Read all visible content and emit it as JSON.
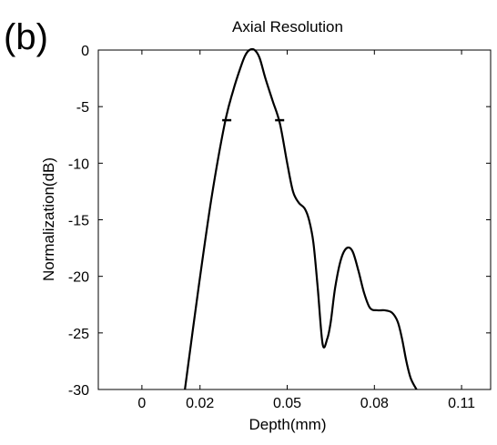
{
  "panel_label": "(b)",
  "chart_data": {
    "type": "line",
    "title": "Axial Resolution",
    "xlabel": "Depth(mm)",
    "ylabel": "Normalization(dB)",
    "xlim": [
      -0.015,
      0.12
    ],
    "ylim": [
      -30,
      0
    ],
    "xticks": [
      0,
      0.02,
      0.05,
      0.08,
      0.11
    ],
    "xtick_labels": [
      "0",
      "0.02",
      "0.05",
      "0.08",
      "0.11"
    ],
    "yticks": [
      0,
      -5,
      -10,
      -15,
      -20,
      -25,
      -30
    ],
    "ytick_labels": [
      "0",
      "-5",
      "-10",
      "-15",
      "-20",
      "-25",
      "-30"
    ],
    "grid": false,
    "legend": "none",
    "line_color": "#000000",
    "series": [
      {
        "x": [
          0.0148,
          0.0195,
          0.024,
          0.0285,
          0.0315,
          0.034,
          0.0355,
          0.037,
          0.0388,
          0.0405,
          0.0425,
          0.045,
          0.0475,
          0.05,
          0.052,
          0.054,
          0.056,
          0.0575,
          0.059,
          0.0605,
          0.0622,
          0.0638,
          0.065,
          0.0665,
          0.0685,
          0.0705,
          0.0725,
          0.0745,
          0.0765,
          0.0785,
          0.081,
          0.0835,
          0.086,
          0.088,
          0.0895,
          0.091,
          0.0925,
          0.0945
        ],
        "y": [
          -30,
          -21,
          -13,
          -6.5,
          -3.5,
          -1.5,
          -0.5,
          0,
          0,
          -0.7,
          -2.5,
          -4.5,
          -6.5,
          -10,
          -12.5,
          -13.5,
          -14,
          -15,
          -17,
          -21,
          -26,
          -25.5,
          -24,
          -21,
          -18.5,
          -17.5,
          -17.8,
          -19.5,
          -21.5,
          -22.8,
          -23,
          -23,
          -23.2,
          -24,
          -25.5,
          -27.5,
          -29,
          -30
        ]
      }
    ],
    "markers": {
      "y": -6.2,
      "x": [
        0.0292,
        0.0474
      ]
    }
  }
}
